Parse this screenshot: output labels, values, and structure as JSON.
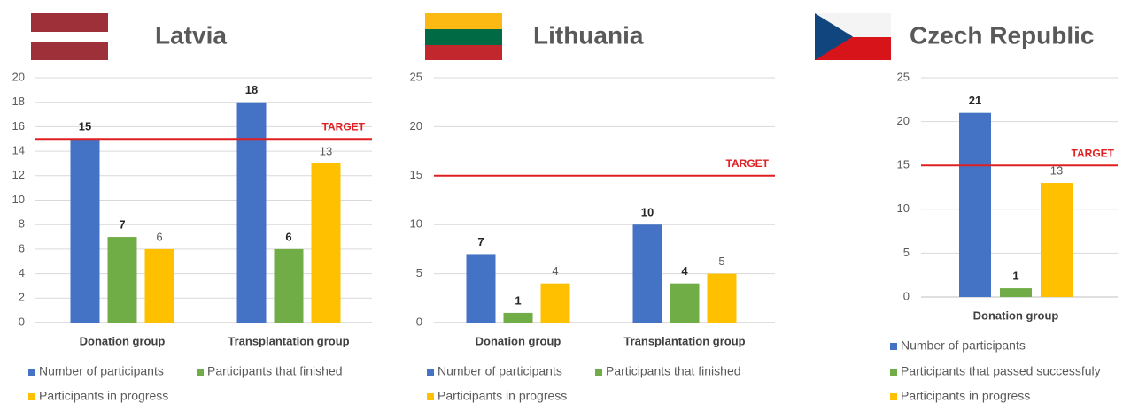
{
  "chart_data": [
    {
      "type": "bar",
      "title": "Latvia",
      "categories": [
        "Donation group",
        "Transplantation group"
      ],
      "series": [
        {
          "name": "Number of participants",
          "color": "#4472c4",
          "values": [
            15,
            18
          ]
        },
        {
          "name": "Participants that finished",
          "color": "#70ad47",
          "values": [
            7,
            6
          ]
        },
        {
          "name": "Participants in progress",
          "color": "#ffc000",
          "values": [
            6,
            13
          ]
        }
      ],
      "ylim": [
        0,
        20
      ],
      "yticks": [
        0,
        2,
        4,
        6,
        8,
        10,
        12,
        14,
        16,
        18,
        20
      ],
      "grid": true,
      "target": {
        "value": 15,
        "label": "TARGET",
        "color": "#e02020"
      }
    },
    {
      "type": "bar",
      "title": "Lithuania",
      "categories": [
        "Donation group",
        "Transplantation group"
      ],
      "series": [
        {
          "name": "Number of participants",
          "color": "#4472c4",
          "values": [
            7,
            10
          ]
        },
        {
          "name": "Participants that finished",
          "color": "#70ad47",
          "values": [
            1,
            4
          ]
        },
        {
          "name": "Participants in progress",
          "color": "#ffc000",
          "values": [
            4,
            5
          ]
        }
      ],
      "ylim": [
        0,
        25
      ],
      "yticks": [
        0,
        5,
        10,
        15,
        20,
        25
      ],
      "grid": true,
      "target": {
        "value": 15,
        "label": "TARGET",
        "color": "#e02020"
      }
    },
    {
      "type": "bar",
      "title": "Czech Republic",
      "categories": [
        "Donation group"
      ],
      "series": [
        {
          "name": "Number of participants",
          "color": "#4472c4",
          "values": [
            21
          ]
        },
        {
          "name": "Participants that passed successfuly",
          "color": "#70ad47",
          "values": [
            1
          ]
        },
        {
          "name": "Participants in progress",
          "color": "#ffc000",
          "values": [
            13
          ]
        }
      ],
      "ylim": [
        0,
        25
      ],
      "yticks": [
        0,
        5,
        10,
        15,
        20,
        25
      ],
      "grid": true,
      "target": {
        "value": 15,
        "label": "TARGET",
        "color": "#e02020"
      }
    }
  ]
}
